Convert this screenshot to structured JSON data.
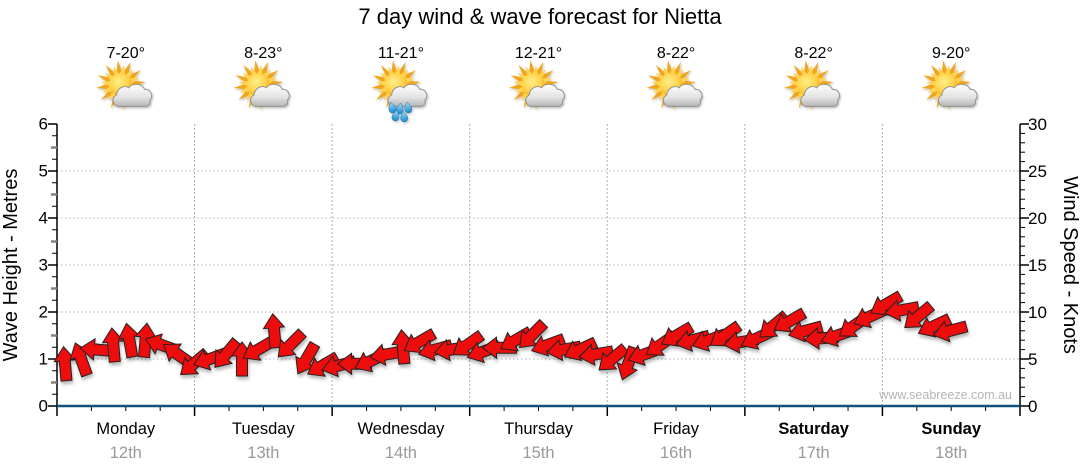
{
  "header": {
    "title": "7 day wind & wave forecast for Nietta"
  },
  "footer": {
    "watermark": "www.seabreeze.com.au"
  },
  "chart_data": {
    "type": "wind-barb-timeseries",
    "title": "7 day wind & wave forecast for Nietta",
    "legend_position": "none",
    "grid": "dotted",
    "days": [
      {
        "name": "Monday",
        "date": "12th",
        "temp": "7-20°",
        "icon": "sun-cloud-icon",
        "bold": false
      },
      {
        "name": "Tuesday",
        "date": "13th",
        "temp": "8-23°",
        "icon": "sun-cloud-icon",
        "bold": false
      },
      {
        "name": "Wednesday",
        "date": "14th",
        "temp": "11-21°",
        "icon": "sun-cloud-rain-icon",
        "bold": false
      },
      {
        "name": "Thursday",
        "date": "15th",
        "temp": "12-21°",
        "icon": "sun-cloud-icon",
        "bold": false
      },
      {
        "name": "Friday",
        "date": "16th",
        "temp": "8-22°",
        "icon": "sun-cloud-icon",
        "bold": false
      },
      {
        "name": "Saturday",
        "date": "17th",
        "temp": "8-22°",
        "icon": "sun-cloud-icon",
        "bold": true
      },
      {
        "name": "Sunday",
        "date": "18th",
        "temp": "9-20°",
        "icon": "sun-cloud-icon",
        "bold": true
      }
    ],
    "wave_axis": {
      "label": "Wave Height - Metres",
      "min": 0,
      "max": 6,
      "major_ticks": [
        0,
        1,
        2,
        3,
        4,
        5,
        6
      ],
      "minor_step": 0.25
    },
    "wind_axis": {
      "label": "Wind Speed - Knots",
      "min": 0,
      "max": 30,
      "major_ticks": [
        0,
        5,
        10,
        15,
        20,
        25,
        30
      ],
      "minor_step": 1
    },
    "wave_height_series_m": 0,
    "wind_arrows": {
      "steps_per_day": 8,
      "speeds_knots": [
        4.5,
        5,
        6,
        6.5,
        7,
        7,
        6.5,
        5.5,
        4.5,
        5,
        5.5,
        5,
        6,
        8,
        6.5,
        5,
        4.3,
        4.3,
        4.5,
        4.8,
        5.5,
        6.3,
        6.8,
        6,
        6,
        6.5,
        5.8,
        6.2,
        7,
        7.5,
        6.5,
        6,
        6,
        5.5,
        5,
        4.5,
        5.5,
        6.5,
        7.5,
        7,
        7,
        7.5,
        6.8,
        7.2,
        8.5,
        9,
        8,
        7.2,
        7.5,
        8.5,
        9.5,
        10.8,
        10.2,
        9.5,
        8.5,
        8
      ],
      "directions_deg": [
        -95,
        -110,
        185,
        -95,
        -100,
        -85,
        200,
        215,
        140,
        160,
        130,
        -90,
        150,
        -95,
        135,
        120,
        150,
        165,
        180,
        155,
        170,
        -95,
        150,
        165,
        170,
        145,
        160,
        180,
        150,
        135,
        160,
        170,
        155,
        170,
        140,
        110,
        160,
        145,
        150,
        165,
        160,
        145,
        170,
        155,
        140,
        150,
        165,
        175,
        160,
        145,
        155,
        150,
        170,
        140,
        155,
        165
      ]
    },
    "colors": {
      "arrow_red": "#ee0a0a",
      "arrow_outline": "#222222",
      "wave_line_blue": "#10527e",
      "grid_gray": "#b0b0b0",
      "axis_black": "#000000",
      "minor_half_tick_gray": "#808080",
      "date_gray": "#999999",
      "watermark_gray": "#b5b5b5",
      "sun_orange": "#f2a51d",
      "sun_yellow": "#ffd34d",
      "cloud_light": "#ffffff",
      "cloud_dark": "#bdbdbd",
      "rain_blue": "#2196d8"
    }
  }
}
